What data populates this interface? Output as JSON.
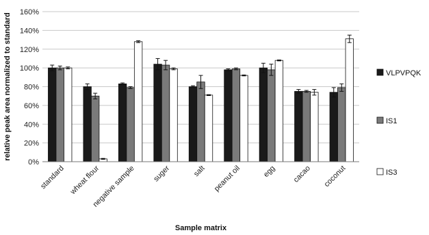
{
  "chart_data": {
    "type": "bar",
    "title": "",
    "xlabel": "Sample matrix",
    "ylabel": "relative peak area normalized to standard",
    "ylim": [
      0,
      160
    ],
    "ytick_step": 20,
    "ytick_labels": [
      "0%",
      "20%",
      "40%",
      "60%",
      "80%",
      "100%",
      "120%",
      "140%",
      "160%"
    ],
    "grid": true,
    "legend_position": "right",
    "categories": [
      "standard",
      "wheat flour",
      "negative sample",
      "suger",
      "salt",
      "peanut oil",
      "egg",
      "cacao",
      "coconut"
    ],
    "series": [
      {
        "name": "VLPVPQK",
        "color": "#1a1a1a",
        "values": [
          100,
          80,
          83,
          104,
          80,
          98,
          100,
          75,
          74
        ],
        "errors": [
          3,
          3,
          1,
          6,
          1,
          1,
          5,
          2,
          5
        ]
      },
      {
        "name": "IS1",
        "color": "#7a7a7a",
        "values": [
          100,
          70,
          79,
          103,
          85,
          99,
          98,
          75,
          79
        ],
        "errors": [
          2,
          3,
          1,
          5,
          7,
          1,
          6,
          1,
          4
        ]
      },
      {
        "name": "IS3",
        "color": "#ffffff",
        "values": [
          100,
          3,
          128,
          99,
          71,
          92,
          108,
          74,
          131
        ],
        "errors": [
          1,
          0.5,
          1,
          1,
          0.5,
          0.5,
          0.5,
          3,
          4
        ]
      }
    ]
  }
}
